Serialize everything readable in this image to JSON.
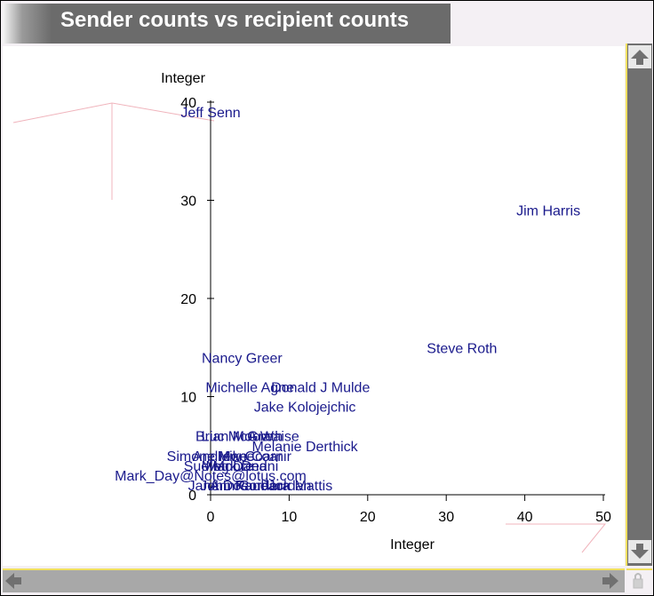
{
  "window": {
    "title": "Sender counts vs recipient counts"
  },
  "chart_data": {
    "type": "scatter",
    "xlabel": "Integer",
    "ylabel": "Integer",
    "xlim": [
      0,
      50
    ],
    "ylim": [
      0,
      40
    ],
    "x_ticks": [
      0,
      10,
      20,
      30,
      40,
      50
    ],
    "y_ticks": [
      0,
      10,
      20,
      30,
      40
    ],
    "x_tick_labels": [
      "0",
      "10",
      "20",
      "30",
      "40",
      "50"
    ],
    "y_tick_labels": [
      "0",
      "10",
      "20",
      "30",
      "40"
    ],
    "grid": false,
    "point_color": "#1a1a8c",
    "points": [
      {
        "label": "Jeff Senn",
        "x": 0,
        "y": 39
      },
      {
        "label": "Jim Harris",
        "x": 43,
        "y": 29
      },
      {
        "label": "Steve Roth",
        "x": 32,
        "y": 15
      },
      {
        "label": "Nancy Greer",
        "x": 4,
        "y": 14
      },
      {
        "label": "Michelle Agne",
        "x": 5,
        "y": 11
      },
      {
        "label": "Donald J Mulde",
        "x": 14,
        "y": 11
      },
      {
        "label": "Jake Kolojejchic",
        "x": 12,
        "y": 9
      },
      {
        "label": "Brian Moore",
        "x": 3,
        "y": 6
      },
      {
        "label": "Luc McGrath",
        "x": 4,
        "y": 6
      },
      {
        "label": "A Waise",
        "x": 8,
        "y": 6
      },
      {
        "label": "Melanie Derthick",
        "x": 12,
        "y": 5
      },
      {
        "label": "Simone Mone",
        "x": 0,
        "y": 4
      },
      {
        "label": "Andrew Coarnir",
        "x": 4,
        "y": 4
      },
      {
        "label": "Mike Coar",
        "x": 5,
        "y": 4
      },
      {
        "label": "Sue Moore",
        "x": 1,
        "y": 3
      },
      {
        "label": "Meg Dana",
        "x": 3,
        "y": 3
      },
      {
        "label": "Mark Dedni",
        "x": 4,
        "y": 3
      },
      {
        "label": "Mark_Day@Notes@lotus.com",
        "x": 0,
        "y": 2
      },
      {
        "label": "Jack Mattis",
        "x": 11,
        "y": 1
      },
      {
        "label": "Jane Doe",
        "x": 1,
        "y": 1
      },
      {
        "label": "John Kane",
        "x": 3,
        "y": 1
      },
      {
        "label": "Ann Cordera",
        "x": 5,
        "y": 1
      },
      {
        "label": "Paul Jordan",
        "x": 8,
        "y": 1
      }
    ]
  }
}
